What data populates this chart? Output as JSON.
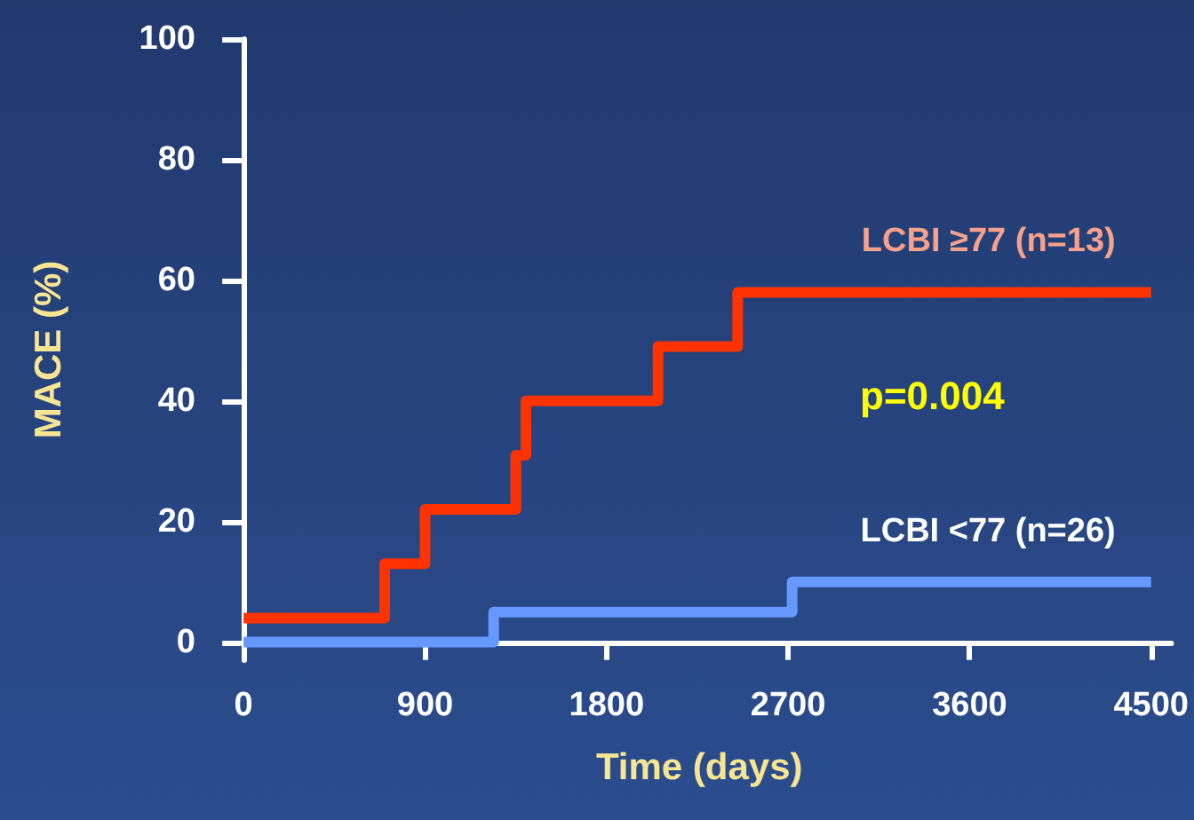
{
  "chart_data": {
    "type": "step",
    "xlabel": "Time (days)",
    "ylabel": "MACE (%)",
    "xlim": [
      -80,
      4600
    ],
    "xticks": [
      0,
      900,
      1800,
      2700,
      3600,
      4500
    ],
    "ylim": [
      -3,
      100
    ],
    "yticks": [
      0,
      20,
      40,
      60,
      80,
      100
    ],
    "grid": false,
    "legend": false,
    "marker": "none",
    "line_style": "solid",
    "annotations": [
      "p=0.004"
    ],
    "series": [
      {
        "name": "LCBI ≥77 (n=13)",
        "color": "#ff3300",
        "x": [
          0,
          700,
          900,
          1350,
          1400,
          2055,
          2450,
          4500
        ],
        "values": [
          4,
          13,
          22,
          31,
          40,
          49,
          58,
          58
        ]
      },
      {
        "name": "LCBI <77 (n=26)",
        "color": "#6699ff",
        "x": [
          0,
          1240,
          2720,
          4500
        ],
        "values": [
          0,
          5,
          10,
          10
        ]
      }
    ]
  }
}
